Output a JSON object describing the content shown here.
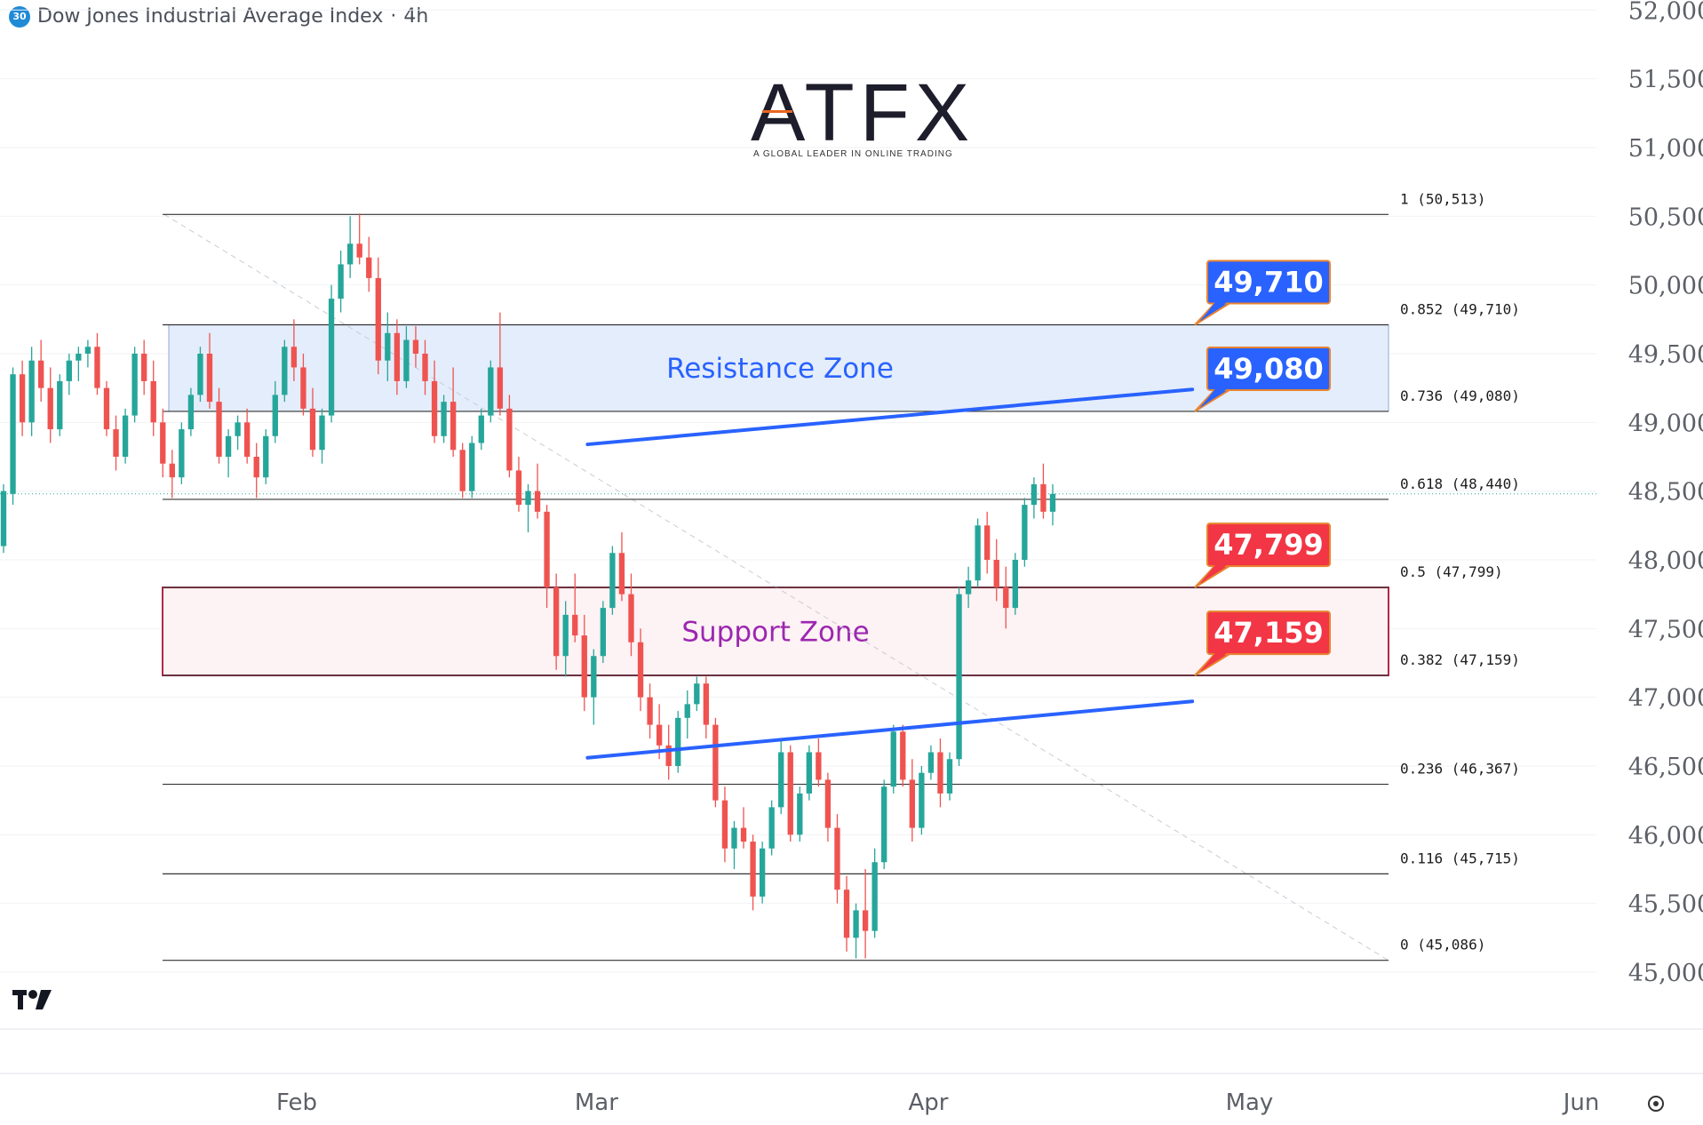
{
  "header": {
    "symbol_badge": "30",
    "title": "Dow Jones Industrial Average Index",
    "interval": "4h"
  },
  "logo": {
    "name": "ATFX",
    "tagline": "A GLOBAL LEADER IN ONLINE TRADING",
    "accent_color": "#e8661f"
  },
  "branding": {
    "icon": "tradingview-logo-icon"
  },
  "controls": {
    "settings_icon": "gear-icon"
  },
  "colors": {
    "bull": "#26a69a",
    "bear": "#ef5350",
    "trendline": "#2962ff",
    "resistance_text": "#2962ff",
    "support_text": "#9c27b0",
    "support_border": "#b0284a",
    "callout_blue": "#2962ff",
    "callout_red": "#f23645",
    "callout_border": "#e8842f"
  },
  "chart_data": {
    "type": "candlestick",
    "title": "Dow Jones Industrial Average Index · 4h",
    "y_axis": {
      "ticks": [
        45000,
        45500,
        46000,
        46500,
        47000,
        47500,
        48000,
        48500,
        49000,
        49500,
        50000,
        50500,
        51000,
        51500,
        52000
      ],
      "tick_labels": [
        "45,000",
        "45,500",
        "46,000",
        "46,500",
        "47,000",
        "47,500",
        "48,000",
        "48,500",
        "49,000",
        "49,500",
        "50,000",
        "50,500",
        "51,000",
        "51,500",
        "52,000"
      ],
      "ylim": [
        44570,
        52050
      ]
    },
    "x_axis": {
      "tick_labels": [
        "Feb",
        "Mar",
        "Apr",
        "May",
        "Jun"
      ]
    },
    "fibonacci": [
      {
        "ratio": "1",
        "value": 50513,
        "label": "1 (50,513)"
      },
      {
        "ratio": "0.852",
        "value": 49710,
        "label": "0.852 (49,710)"
      },
      {
        "ratio": "0.736",
        "value": 49080,
        "label": "0.736 (49,080)"
      },
      {
        "ratio": "0.618",
        "value": 48440,
        "label": "0.618 (48,440)"
      },
      {
        "ratio": "0.5",
        "value": 47799,
        "label": "0.5 (47,799)"
      },
      {
        "ratio": "0.382",
        "value": 47159,
        "label": "0.382 (47,159)"
      },
      {
        "ratio": "0.236",
        "value": 46367,
        "label": "0.236 (46,367)"
      },
      {
        "ratio": "0.116",
        "value": 45715,
        "label": "0.116 (45,715)"
      },
      {
        "ratio": "0",
        "value": 45086,
        "label": "0 (45,086)"
      }
    ],
    "zones": [
      {
        "name": "Resistance Zone",
        "from": 49080,
        "to": 49710
      },
      {
        "name": "Support Zone",
        "from": 47159,
        "to": 47799
      }
    ],
    "callouts": [
      {
        "label": "49,710",
        "value": 49710,
        "color": "blue"
      },
      {
        "label": "49,080",
        "value": 49080,
        "color": "blue"
      },
      {
        "label": "47,799",
        "value": 47799,
        "color": "red"
      },
      {
        "label": "47,159",
        "value": 47159,
        "color": "red"
      }
    ],
    "trendlines": [
      {
        "from": {
          "date": "2026-03-01",
          "value": 48840
        },
        "to": {
          "date": "2026-04-25",
          "value": 49240
        }
      },
      {
        "from": {
          "date": "2026-03-01",
          "value": 46560
        },
        "to": {
          "date": "2026-04-25",
          "value": 46970
        }
      }
    ],
    "current_price": 48480,
    "ohlc": [
      [
        48100,
        48550,
        48050,
        48500
      ],
      [
        48480,
        49400,
        48400,
        49350
      ],
      [
        49350,
        49450,
        48900,
        49000
      ],
      [
        49000,
        49550,
        48900,
        49450
      ],
      [
        49450,
        49600,
        49150,
        49250
      ],
      [
        49250,
        49400,
        48850,
        48950
      ],
      [
        48950,
        49350,
        48900,
        49300
      ],
      [
        49300,
        49500,
        49200,
        49450
      ],
      [
        49450,
        49550,
        49300,
        49500
      ],
      [
        49500,
        49600,
        49400,
        49550
      ],
      [
        49550,
        49650,
        49200,
        49250
      ],
      [
        49250,
        49300,
        48900,
        48950
      ],
      [
        48950,
        49050,
        48650,
        48750
      ],
      [
        48750,
        49100,
        48700,
        49050
      ],
      [
        49050,
        49550,
        49000,
        49500
      ],
      [
        49500,
        49600,
        49200,
        49300
      ],
      [
        49300,
        49450,
        48900,
        49000
      ],
      [
        49000,
        49100,
        48600,
        48700
      ],
      [
        48700,
        48800,
        48450,
        48600
      ],
      [
        48600,
        49000,
        48550,
        48950
      ],
      [
        48950,
        49250,
        48900,
        49200
      ],
      [
        49200,
        49550,
        49150,
        49500
      ],
      [
        49500,
        49650,
        49100,
        49150
      ],
      [
        49150,
        49250,
        48700,
        48750
      ],
      [
        48750,
        48950,
        48600,
        48900
      ],
      [
        48900,
        49050,
        48800,
        49000
      ],
      [
        49000,
        49100,
        48700,
        48750
      ],
      [
        48750,
        48850,
        48450,
        48600
      ],
      [
        48600,
        48950,
        48550,
        48900
      ],
      [
        48900,
        49300,
        48850,
        49200
      ],
      [
        49200,
        49600,
        49150,
        49550
      ],
      [
        49550,
        49750,
        49300,
        49400
      ],
      [
        49400,
        49500,
        49050,
        49100
      ],
      [
        49100,
        49250,
        48750,
        48800
      ],
      [
        48800,
        49100,
        48700,
        49050
      ],
      [
        49050,
        50000,
        49000,
        49900
      ],
      [
        49900,
        50250,
        49800,
        50150
      ],
      [
        50150,
        50500,
        50050,
        50300
      ],
      [
        50300,
        50520,
        50150,
        50200
      ],
      [
        50200,
        50350,
        49950,
        50050
      ],
      [
        50050,
        50200,
        49350,
        49450
      ],
      [
        49450,
        49800,
        49300,
        49650
      ],
      [
        49650,
        49750,
        49200,
        49300
      ],
      [
        49300,
        49700,
        49250,
        49600
      ],
      [
        49600,
        49700,
        49400,
        49500
      ],
      [
        49500,
        49600,
        49200,
        49300
      ],
      [
        49300,
        49450,
        48850,
        48900
      ],
      [
        48900,
        49200,
        48850,
        49150
      ],
      [
        49150,
        49400,
        48750,
        48800
      ],
      [
        48800,
        48850,
        48450,
        48500
      ],
      [
        48500,
        48900,
        48450,
        48850
      ],
      [
        48850,
        49100,
        48800,
        49050
      ],
      [
        49050,
        49450,
        49000,
        49400
      ],
      [
        49400,
        49800,
        49050,
        49100
      ],
      [
        49100,
        49200,
        48600,
        48650
      ],
      [
        48650,
        48750,
        48350,
        48400
      ],
      [
        48400,
        48550,
        48200,
        48500
      ],
      [
        48500,
        48700,
        48300,
        48350
      ],
      [
        48350,
        48400,
        47650,
        47800
      ],
      [
        47800,
        47900,
        47200,
        47300
      ],
      [
        47300,
        47700,
        47150,
        47600
      ],
      [
        47600,
        47900,
        47400,
        47450
      ],
      [
        47450,
        47600,
        46900,
        47000
      ],
      [
        47000,
        47350,
        46800,
        47300
      ],
      [
        47300,
        47700,
        47250,
        47650
      ],
      [
        47650,
        48100,
        47600,
        48050
      ],
      [
        48050,
        48200,
        47700,
        47750
      ],
      [
        47750,
        47900,
        47300,
        47400
      ],
      [
        47400,
        47500,
        46900,
        47000
      ],
      [
        47000,
        47100,
        46700,
        46800
      ],
      [
        46800,
        46950,
        46550,
        46650
      ],
      [
        46650,
        46800,
        46400,
        46500
      ],
      [
        46500,
        46900,
        46450,
        46850
      ],
      [
        46850,
        47050,
        46700,
        46950
      ],
      [
        46950,
        47150,
        46900,
        47100
      ],
      [
        47100,
        47150,
        46700,
        46800
      ],
      [
        46800,
        46850,
        46200,
        46250
      ],
      [
        46250,
        46350,
        45800,
        45900
      ],
      [
        45900,
        46100,
        45750,
        46050
      ],
      [
        46050,
        46200,
        45900,
        45950
      ],
      [
        45950,
        46000,
        45450,
        45550
      ],
      [
        45550,
        45950,
        45500,
        45900
      ],
      [
        45900,
        46250,
        45850,
        46200
      ],
      [
        46200,
        46700,
        46150,
        46600
      ],
      [
        46600,
        46650,
        45950,
        46000
      ],
      [
        46000,
        46350,
        45950,
        46300
      ],
      [
        46300,
        46650,
        46250,
        46600
      ],
      [
        46600,
        46700,
        46350,
        46400
      ],
      [
        46400,
        46450,
        45950,
        46050
      ],
      [
        46050,
        46150,
        45500,
        45600
      ],
      [
        45600,
        45700,
        45150,
        45250
      ],
      [
        45250,
        45500,
        45100,
        45450
      ],
      [
        45450,
        45750,
        45100,
        45300
      ],
      [
        45300,
        45900,
        45250,
        45800
      ],
      [
        45800,
        46400,
        45750,
        46350
      ],
      [
        46350,
        46800,
        46300,
        46750
      ],
      [
        46750,
        46800,
        46350,
        46400
      ],
      [
        46400,
        46550,
        45950,
        46050
      ],
      [
        46050,
        46500,
        46000,
        46450
      ],
      [
        46450,
        46650,
        46400,
        46600
      ],
      [
        46600,
        46700,
        46200,
        46300
      ],
      [
        46300,
        46600,
        46250,
        46550
      ],
      [
        46550,
        47800,
        46500,
        47750
      ],
      [
        47750,
        47950,
        47650,
        47850
      ],
      [
        47850,
        48300,
        47800,
        48250
      ],
      [
        48250,
        48350,
        47900,
        48000
      ],
      [
        48000,
        48150,
        47700,
        47800
      ],
      [
        47800,
        47950,
        47500,
        47650
      ],
      [
        47650,
        48050,
        47600,
        48000
      ],
      [
        48000,
        48450,
        47950,
        48400
      ],
      [
        48400,
        48600,
        48300,
        48550
      ],
      [
        48550,
        48700,
        48300,
        48350
      ],
      [
        48350,
        48550,
        48250,
        48480
      ]
    ]
  }
}
